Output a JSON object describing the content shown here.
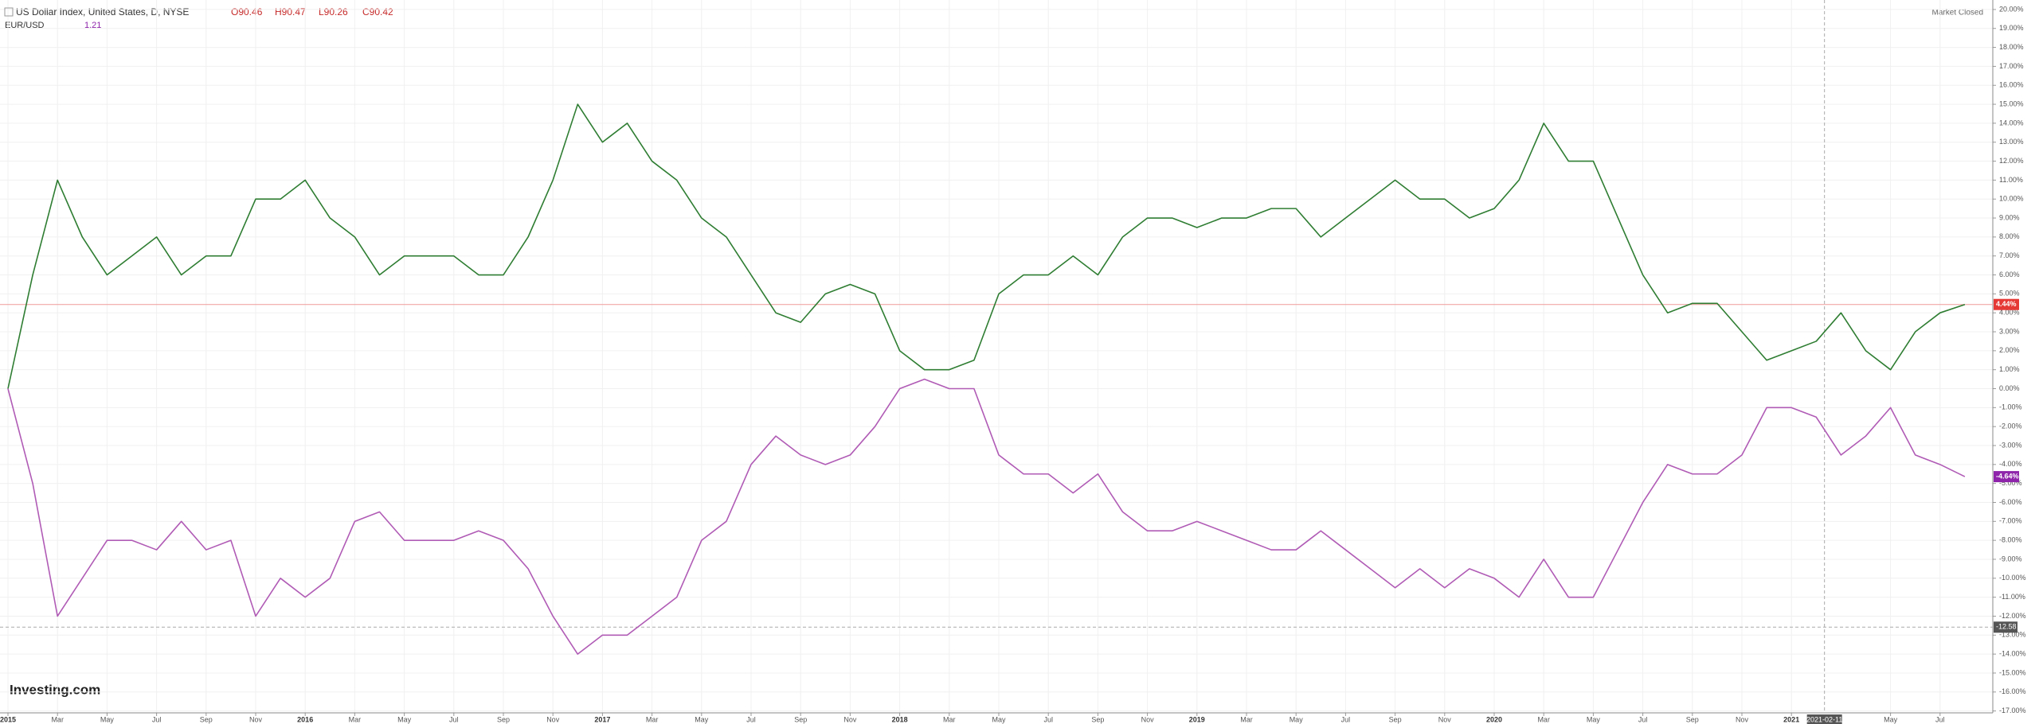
{
  "chart_data": {
    "type": "line",
    "header": {
      "title": "US Dollar Index, United States, D, NYSE",
      "open": "O90.46",
      "high": "H90.47",
      "low": "L90.26",
      "close": "C90.42",
      "compare_name": "EUR/USD",
      "compare_value": "1.21",
      "status": "Market Closed",
      "logo": "Investing.com"
    },
    "x": [
      "2015-01",
      "2015-02",
      "2015-03",
      "2015-04",
      "2015-05",
      "2015-06",
      "2015-07",
      "2015-08",
      "2015-09",
      "2015-10",
      "2015-11",
      "2015-12",
      "2016-01",
      "2016-02",
      "2016-03",
      "2016-04",
      "2016-05",
      "2016-06",
      "2016-07",
      "2016-08",
      "2016-09",
      "2016-10",
      "2016-11",
      "2016-12",
      "2017-01",
      "2017-02",
      "2017-03",
      "2017-04",
      "2017-05",
      "2017-06",
      "2017-07",
      "2017-08",
      "2017-09",
      "2017-10",
      "2017-11",
      "2017-12",
      "2018-01",
      "2018-02",
      "2018-03",
      "2018-04",
      "2018-05",
      "2018-06",
      "2018-07",
      "2018-08",
      "2018-09",
      "2018-10",
      "2018-11",
      "2018-12",
      "2019-01",
      "2019-02",
      "2019-03",
      "2019-04",
      "2019-05",
      "2019-06",
      "2019-07",
      "2019-08",
      "2019-09",
      "2019-10",
      "2019-11",
      "2019-12",
      "2020-01",
      "2020-02",
      "2020-03",
      "2020-04",
      "2020-05",
      "2020-06",
      "2020-07",
      "2020-08",
      "2020-09",
      "2020-10",
      "2020-11",
      "2020-12",
      "2021-01",
      "2021-02",
      "2021-03",
      "2021-04",
      "2021-05",
      "2021-06",
      "2021-07",
      "2021-08"
    ],
    "series": [
      {
        "name": "US Dollar Index",
        "color": "#2e7d32",
        "values": [
          0,
          6,
          11,
          8,
          6,
          7,
          8,
          6,
          7,
          7,
          10,
          10,
          11,
          9,
          8,
          6,
          7,
          7,
          7,
          6,
          6,
          8,
          11,
          15,
          13,
          14,
          12,
          11,
          9,
          8,
          6,
          4,
          3.5,
          5,
          5.5,
          5,
          2,
          1,
          1,
          1.5,
          5,
          6,
          6,
          7,
          6,
          8,
          9,
          9,
          8.5,
          9,
          9,
          9.5,
          9.5,
          8,
          9,
          10,
          11,
          10,
          10,
          9,
          9.5,
          11,
          14,
          12,
          12,
          9,
          6,
          4,
          4.5,
          4.5,
          3,
          1.5,
          2,
          2.5,
          4,
          2,
          1,
          3,
          4,
          4.44
        ],
        "last_value": {
          "value": 4.44,
          "label": "4.44%"
        },
        "label_color": "#e53935"
      },
      {
        "name": "EUR/USD",
        "color": "#b05bb5",
        "values": [
          0,
          -5,
          -12,
          -10,
          -8,
          -8,
          -8.5,
          -7,
          -8.5,
          -8,
          -12,
          -10,
          -11,
          -10,
          -7,
          -6.5,
          -8,
          -8,
          -8,
          -7.5,
          -8,
          -9.5,
          -12,
          -14,
          -13,
          -13,
          -12,
          -11,
          -8,
          -7,
          -4,
          -2.5,
          -3.5,
          -4,
          -3.5,
          -2,
          0,
          0.5,
          0,
          0,
          -3.5,
          -4.5,
          -4.5,
          -5.5,
          -4.5,
          -6.5,
          -7.5,
          -7.5,
          -7,
          -7.5,
          -8,
          -8.5,
          -8.5,
          -7.5,
          -8.5,
          -9.5,
          -10.5,
          -9.5,
          -10.5,
          -9.5,
          -10,
          -11,
          -9,
          -11,
          -11,
          -8.5,
          -6,
          -4,
          -4.5,
          -4.5,
          -3.5,
          -1,
          -1,
          -1.5,
          -3.5,
          -2.5,
          -1,
          -3.5,
          -4,
          -4.64
        ],
        "last_value": {
          "value": -4.64,
          "label": "-4.64%"
        },
        "label_color": "#8e24aa"
      }
    ],
    "crosshair": {
      "x": "2021-02-11",
      "y": {
        "value": -12.58,
        "label": "-12.58"
      }
    },
    "ylim": [
      -17.1,
      20.5
    ],
    "yticks": [
      {
        "value": 20,
        "label": "20.00%"
      },
      {
        "value": 19,
        "label": "19.00%"
      },
      {
        "value": 18,
        "label": "18.00%"
      },
      {
        "value": 17,
        "label": "17.00%"
      },
      {
        "value": 16,
        "label": "16.00%"
      },
      {
        "value": 15,
        "label": "15.00%"
      },
      {
        "value": 14,
        "label": "14.00%"
      },
      {
        "value": 13,
        "label": "13.00%"
      },
      {
        "value": 12,
        "label": "12.00%"
      },
      {
        "value": 11,
        "label": "11.00%"
      },
      {
        "value": 10,
        "label": "10.00%"
      },
      {
        "value": 9,
        "label": "9.00%"
      },
      {
        "value": 8,
        "label": "8.00%"
      },
      {
        "value": 7,
        "label": "7.00%"
      },
      {
        "value": 6,
        "label": "6.00%"
      },
      {
        "value": 5,
        "label": "5.00%"
      },
      {
        "value": 4,
        "label": "4.00%"
      },
      {
        "value": 3,
        "label": "3.00%"
      },
      {
        "value": 2,
        "label": "2.00%"
      },
      {
        "value": 1,
        "label": "1.00%"
      },
      {
        "value": 0,
        "label": "0.00%"
      },
      {
        "value": -1,
        "label": "-1.00%"
      },
      {
        "value": -2,
        "label": "-2.00%"
      },
      {
        "value": -3,
        "label": "-3.00%"
      },
      {
        "value": -4,
        "label": "-4.00%"
      },
      {
        "value": -5,
        "label": "-5.00%"
      },
      {
        "value": -6,
        "label": "-6.00%"
      },
      {
        "value": -7,
        "label": "-7.00%"
      },
      {
        "value": -8,
        "label": "-8.00%"
      },
      {
        "value": -9,
        "label": "-9.00%"
      },
      {
        "value": -10,
        "label": "-10.00%"
      },
      {
        "value": -11,
        "label": "-11.00%"
      },
      {
        "value": -12,
        "label": "-12.00%"
      },
      {
        "value": -13,
        "label": "-13.00%"
      },
      {
        "value": -14,
        "label": "-14.00%"
      },
      {
        "value": -15,
        "label": "-15.00%"
      },
      {
        "value": -16,
        "label": "-16.00%"
      },
      {
        "value": -17,
        "label": "-17.00%"
      }
    ],
    "xticks": [
      {
        "value": "2015-01",
        "label": "2015"
      },
      {
        "value": "2015-03",
        "label": "Mar"
      },
      {
        "value": "2015-05",
        "label": "May"
      },
      {
        "value": "2015-07",
        "label": "Jul"
      },
      {
        "value": "2015-09",
        "label": "Sep"
      },
      {
        "value": "2015-11",
        "label": "Nov"
      },
      {
        "value": "2016-01",
        "label": "2016"
      },
      {
        "value": "2016-03",
        "label": "Mar"
      },
      {
        "value": "2016-05",
        "label": "May"
      },
      {
        "value": "2016-07",
        "label": "Jul"
      },
      {
        "value": "2016-09",
        "label": "Sep"
      },
      {
        "value": "2016-11",
        "label": "Nov"
      },
      {
        "value": "2017-01",
        "label": "2017"
      },
      {
        "value": "2017-03",
        "label": "Mar"
      },
      {
        "value": "2017-05",
        "label": "May"
      },
      {
        "value": "2017-07",
        "label": "Jul"
      },
      {
        "value": "2017-09",
        "label": "Sep"
      },
      {
        "value": "2017-11",
        "label": "Nov"
      },
      {
        "value": "2018-01",
        "label": "2018"
      },
      {
        "value": "2018-03",
        "label": "Mar"
      },
      {
        "value": "2018-05",
        "label": "May"
      },
      {
        "value": "2018-07",
        "label": "Jul"
      },
      {
        "value": "2018-09",
        "label": "Sep"
      },
      {
        "value": "2018-11",
        "label": "Nov"
      },
      {
        "value": "2019-01",
        "label": "2019"
      },
      {
        "value": "2019-03",
        "label": "Mar"
      },
      {
        "value": "2019-05",
        "label": "May"
      },
      {
        "value": "2019-07",
        "label": "Jul"
      },
      {
        "value": "2019-09",
        "label": "Sep"
      },
      {
        "value": "2019-11",
        "label": "Nov"
      },
      {
        "value": "2020-01",
        "label": "2020"
      },
      {
        "value": "2020-03",
        "label": "Mar"
      },
      {
        "value": "2020-05",
        "label": "May"
      },
      {
        "value": "2020-07",
        "label": "Jul"
      },
      {
        "value": "2020-09",
        "label": "Sep"
      },
      {
        "value": "2020-11",
        "label": "Nov"
      },
      {
        "value": "2021-01",
        "label": "2021"
      },
      {
        "value": "2021-05",
        "label": "May"
      },
      {
        "value": "2021-07",
        "label": "Jul"
      }
    ],
    "grid": true
  }
}
